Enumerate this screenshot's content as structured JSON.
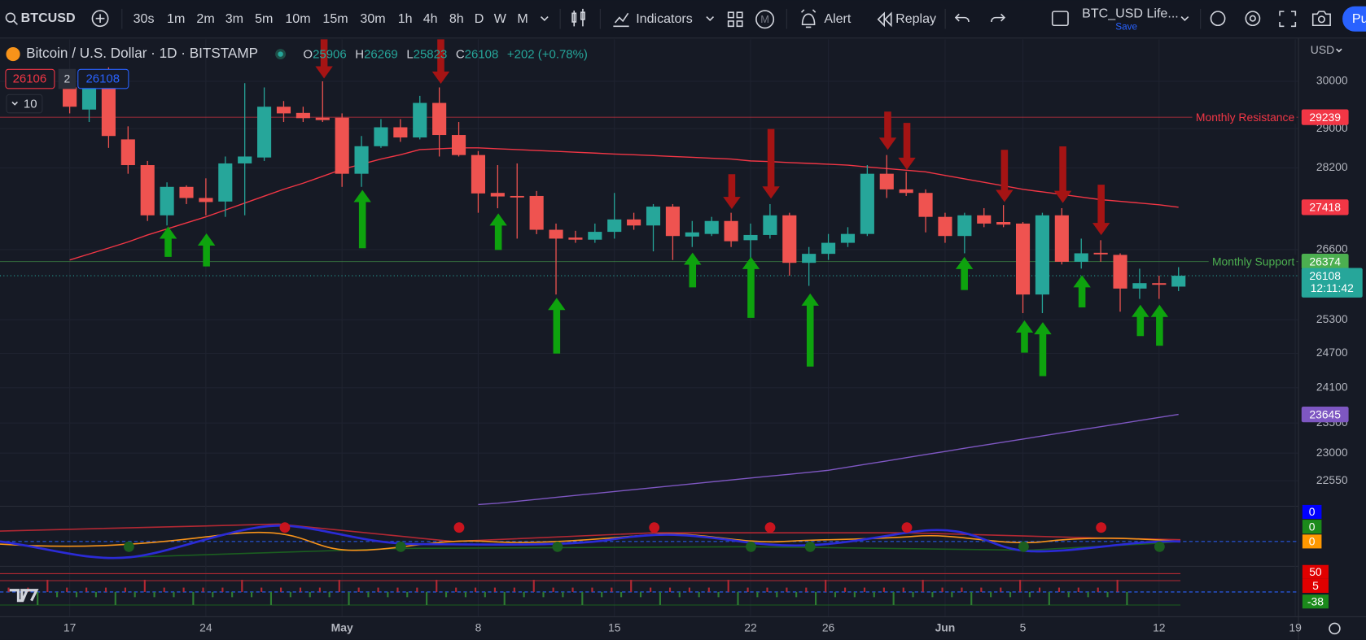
{
  "toolbar": {
    "symbol": "BTCUSD",
    "intervals": [
      "30s",
      "1m",
      "2m",
      "3m",
      "5m",
      "10m",
      "15m",
      "30m",
      "1h",
      "4h",
      "8h",
      "D",
      "W",
      "M"
    ],
    "indicators": "Indicators",
    "template_badge": "M",
    "alert": "Alert",
    "replay": "Replay",
    "layout_name": "BTC_USD Life...",
    "save": "Save",
    "publish": "Pu"
  },
  "legend": {
    "ohlc_labels": [
      "O",
      "H",
      "L",
      "C"
    ],
    "change": "+202 (+0.78%)",
    "bid": 26106,
    "spread": 2,
    "ask": 26108,
    "indicator_count": 10,
    "countdown": "12:11:42",
    "currency": "USD"
  },
  "indicator_panes": {
    "oscillator_labels": [
      0,
      0,
      0
    ],
    "volume_labels": [
      50,
      5,
      -38
    ]
  },
  "chart_data": {
    "type": "candlestick",
    "title": "Bitcoin / U.S. Dollar · 1D · BITSTAMP",
    "categories": [
      "17",
      null,
      null,
      null,
      null,
      null,
      null,
      "24",
      null,
      null,
      null,
      null,
      null,
      null,
      "May",
      null,
      null,
      null,
      null,
      null,
      null,
      "8",
      null,
      null,
      null,
      null,
      null,
      null,
      "15",
      null,
      null,
      null,
      null,
      null,
      null,
      "22",
      null,
      null,
      null,
      "26",
      null,
      null,
      null,
      null,
      null,
      "Jun",
      null,
      null,
      null,
      "5",
      null,
      null,
      null,
      null,
      null,
      null,
      "12",
      null,
      null,
      null,
      null,
      null,
      null,
      "19"
    ],
    "open": [
      29870,
      29400,
      29870,
      28780,
      28256,
      27260,
      27820,
      27600,
      27530,
      28290,
      28410,
      29460,
      29330,
      29230,
      29230,
      28082,
      28640,
      29030,
      28820,
      29540,
      28870,
      28460,
      27700,
      27640,
      27640,
      26980,
      26830,
      26790,
      26940,
      27180,
      27063,
      27430,
      26850,
      26900,
      27150,
      26780,
      26880,
      27260,
      26350,
      26520,
      26730,
      26900,
      28082,
      27770,
      27700,
      27230,
      26860,
      27260,
      27130,
      27100,
      25760,
      27260,
      26370,
      26540,
      26500,
      25870,
      25970,
      25906,
      null,
      null,
      null,
      null,
      null,
      null
    ],
    "high": [
      30000,
      30100,
      30300,
      29050,
      28340,
      27910,
      27850,
      27990,
      28430,
      29960,
      29870,
      29580,
      29460,
      30000,
      29320,
      28850,
      29200,
      29200,
      29690,
      29870,
      29140,
      28540,
      28256,
      28290,
      27738,
      27100,
      26960,
      27100,
      27700,
      27310,
      27480,
      27480,
      27150,
      27230,
      27310,
      27100,
      27480,
      27310,
      26650,
      26900,
      27030,
      28256,
      28460,
      28120,
      27770,
      27310,
      27310,
      27400,
      27460,
      27130,
      27310,
      27400,
      26810,
      26780,
      26530,
      26240,
      26110,
      26269,
      null,
      null,
      null,
      null,
      null,
      null
    ],
    "low": [
      29320,
      29140,
      28606,
      28082,
      27150,
      27063,
      27480,
      27260,
      27230,
      27260,
      28340,
      29140,
      29140,
      29140,
      27820,
      27820,
      28606,
      28730,
      28780,
      28430,
      28430,
      27310,
      27398,
      26810,
      26896,
      25760,
      26730,
      26730,
      26810,
      26980,
      26567,
      26404,
      26650,
      26860,
      26650,
      26404,
      26810,
      26110,
      25920,
      26404,
      26650,
      26860,
      27600,
      27640,
      26930,
      26730,
      26530,
      27030,
      27030,
      25420,
      25420,
      26320,
      26242,
      26370,
      25446,
      25680,
      25680,
      25823,
      null,
      null,
      null,
      null,
      null,
      null
    ],
    "close": [
      29460,
      29870,
      28850,
      28256,
      27260,
      27820,
      27600,
      27520,
      28290,
      28430,
      29460,
      29320,
      29220,
      29180,
      28082,
      28640,
      29030,
      28820,
      29540,
      28870,
      28460,
      27690,
      27630,
      27610,
      26980,
      26810,
      26790,
      26940,
      27180,
      27063,
      27430,
      26860,
      26930,
      27150,
      26760,
      26880,
      27260,
      26350,
      26520,
      26730,
      26900,
      28082,
      27770,
      27700,
      27230,
      26860,
      27260,
      27100,
      27080,
      25760,
      27260,
      26370,
      26530,
      26510,
      25870,
      25970,
      25940,
      26108,
      null,
      null,
      null,
      null,
      null,
      null
    ],
    "up_color": "#26a69a",
    "down_color": "#ef5350",
    "series": [
      {
        "color": "#f23645",
        "values": [
          26404,
          26517,
          26631,
          26747,
          26880,
          26996,
          27113,
          27230,
          27364,
          27500,
          27636,
          27772,
          27893,
          28030,
          28170,
          28273,
          28379,
          28466,
          28570,
          28588,
          28606,
          28606,
          28588,
          28570,
          28553,
          28535,
          28517,
          28500,
          28480,
          28466,
          28448,
          28430,
          28413,
          28396,
          28379,
          28340,
          28326,
          28308,
          28291,
          28273,
          28256,
          28220,
          28186,
          28152,
          28120,
          28050,
          27980,
          27910,
          27841,
          27770,
          27720,
          27670,
          27619,
          27568,
          27534,
          27500,
          27466,
          27418,
          null,
          null,
          null,
          null,
          null,
          null
        ]
      },
      {
        "color": "#7e57c2",
        "values": [
          null,
          null,
          null,
          null,
          null,
          null,
          null,
          null,
          null,
          null,
          null,
          null,
          null,
          null,
          null,
          null,
          null,
          null,
          null,
          null,
          null,
          22170,
          22191,
          22222,
          22253,
          22284,
          22315,
          22346,
          22377,
          22408,
          22439,
          22470,
          22501,
          22532,
          22563,
          22594,
          22625,
          22656,
          22687,
          22719,
          22770,
          22822,
          22873,
          22925,
          22976,
          23027,
          23079,
          23130,
          23182,
          23233,
          23284,
          23336,
          23387,
          23439,
          23490,
          23542,
          23593,
          23645,
          null,
          null,
          null,
          null,
          null,
          null
        ]
      }
    ],
    "levels": [
      {
        "name": "Monthly Resistance",
        "value": 29239,
        "color": "#f23645"
      },
      {
        "name": "Monthly Support",
        "value": 26374,
        "color": "#4caf50"
      }
    ],
    "ylim": [
      22164,
      30913
    ],
    "log_scale": true,
    "yticks": [
      30000,
      29000,
      28200,
      26600,
      25300,
      24700,
      24100,
      23500,
      23000,
      22550
    ],
    "grid": true
  }
}
